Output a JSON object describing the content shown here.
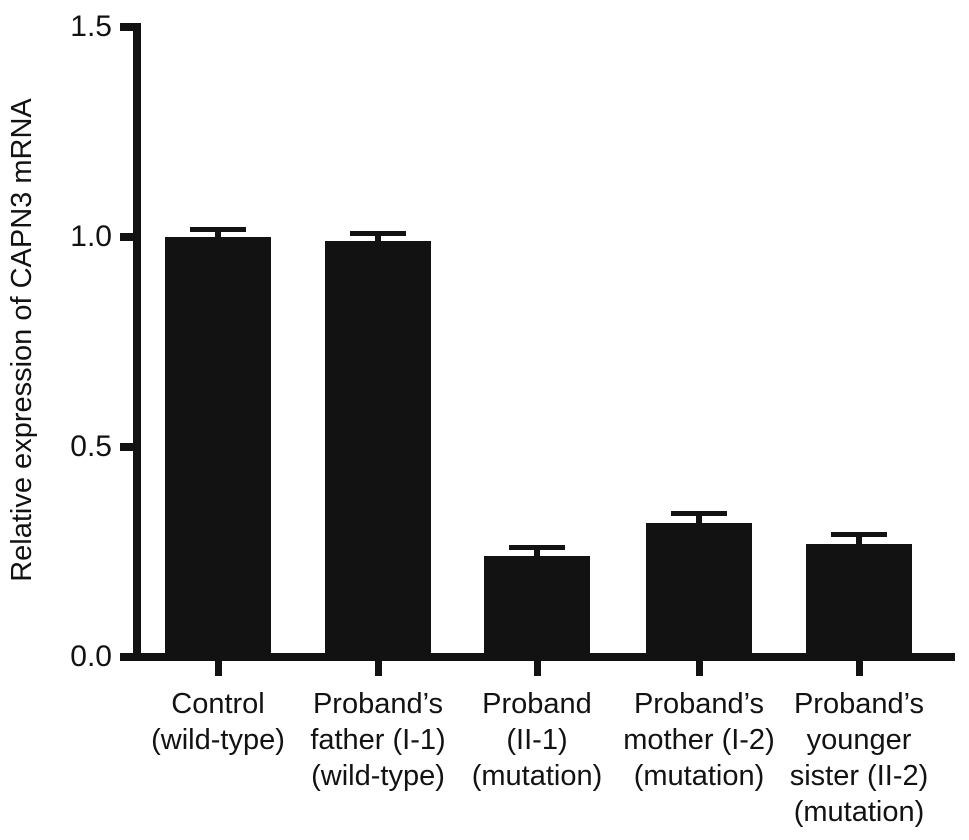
{
  "chart_data": {
    "type": "bar",
    "title": "",
    "xlabel": "",
    "ylabel": "Relative expression of CAPN3 mRNA",
    "ylim": [
      0,
      1.5
    ],
    "yticks": [
      0.0,
      0.5,
      1.0,
      1.5
    ],
    "ytick_labels": [
      "0.0",
      "0.5",
      "1.0",
      "1.5"
    ],
    "grid": false,
    "legend": null,
    "bar_color": "#121212",
    "categories": [
      "Control (wild-type)",
      "Proband’s father (I-1) (wild-type)",
      "Proband (II-1) (mutation)",
      "Proband’s mother (I-2) (mutation)",
      "Proband’s younger sister (II-2) (mutation)"
    ],
    "category_lines": [
      [
        "Control",
        "(wild-type)"
      ],
      [
        "Proband’s",
        "father (I-1)",
        "(wild-type)"
      ],
      [
        "Proband",
        "(II-1)",
        "(mutation)"
      ],
      [
        "Proband’s",
        "mother (I-2)",
        "(mutation)"
      ],
      [
        "Proband’s",
        "younger",
        "sister (II-2)",
        "(mutation)"
      ]
    ],
    "values": [
      1.0,
      0.99,
      0.24,
      0.32,
      0.27
    ],
    "errors": [
      0.02,
      0.02,
      0.022,
      0.022,
      0.022
    ]
  }
}
